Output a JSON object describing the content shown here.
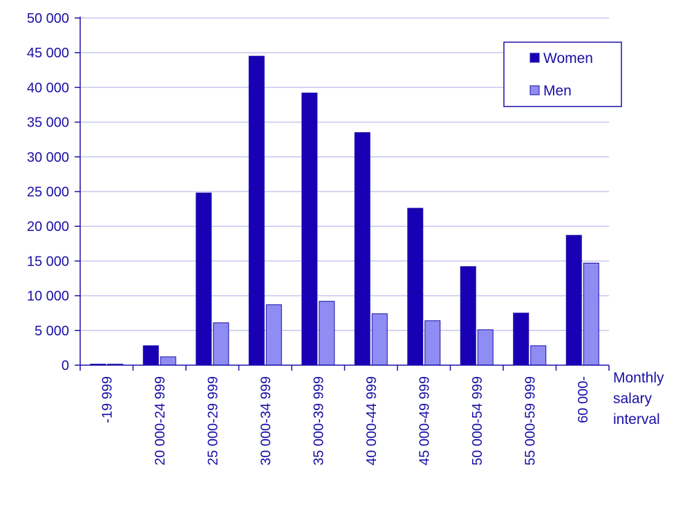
{
  "chart_data": {
    "type": "bar",
    "title": "",
    "xlabel": [
      "Monthly",
      "salary",
      "interval"
    ],
    "ylabel": "",
    "ylim": [
      0,
      50000
    ],
    "yticks": [
      0,
      5000,
      10000,
      15000,
      20000,
      25000,
      30000,
      35000,
      40000,
      45000,
      50000
    ],
    "ytick_labels": [
      "0",
      "5 000",
      "10 000",
      "15 000",
      "20 000",
      "25 000",
      "30 000",
      "35 000",
      "40 000",
      "45 000",
      "50 000"
    ],
    "categories": [
      "-19 999",
      "20 000-24 999",
      "25 000-29 999",
      "30 000-34 999",
      "35 000-39 999",
      "40 000-44 999",
      "45 000-49 999",
      "50 000-54 999",
      "55 000-59 999",
      "60 000-"
    ],
    "series": [
      {
        "name": "Women",
        "color": "#1a00b5",
        "values": [
          150,
          2800,
          24800,
          44500,
          39200,
          33500,
          22600,
          14200,
          7500,
          18700
        ]
      },
      {
        "name": "Men",
        "color": "#8f8cf3",
        "values": [
          150,
          1200,
          6100,
          8700,
          9200,
          7400,
          6400,
          5100,
          2800,
          14700
        ]
      }
    ],
    "grid": true,
    "legend_position": "top-right",
    "colors": {
      "text": "#1a0fa5",
      "grid": "#c8c6ee",
      "axis": "#1a0fa5",
      "bar_stroke": "#1a0fa5"
    }
  }
}
